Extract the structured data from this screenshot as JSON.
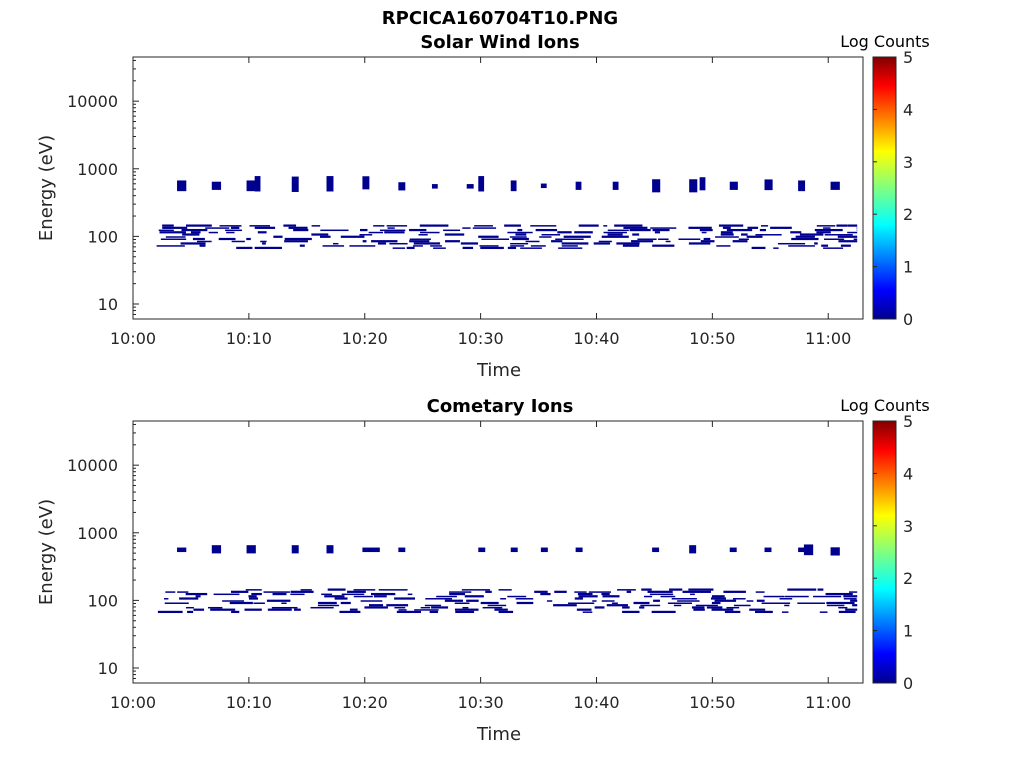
{
  "figure": {
    "title": "RPCICA160704T10.PNG"
  },
  "chart_data": [
    {
      "type": "heatmap",
      "title": "Solar Wind Ions",
      "xlabel": "Time",
      "ylabel": "Energy (eV)",
      "x_ticks": [
        "10:00",
        "10:10",
        "10:20",
        "10:30",
        "10:40",
        "10:50",
        "11:00"
      ],
      "y_ticks": [
        "10",
        "100",
        "1000",
        "10000"
      ],
      "y_scale": "log",
      "xlim_minutes": [
        0,
        63
      ],
      "ylim": [
        6,
        45000
      ],
      "colorbar": {
        "label": "Log Counts",
        "ticks": [
          "0",
          "1",
          "2",
          "3",
          "4",
          "5"
        ],
        "range": [
          0,
          5
        ],
        "colormap": "jet"
      },
      "upper_band": [
        {
          "t": 3.8,
          "e": 560,
          "w": 0.8,
          "h": 1.2
        },
        {
          "t": 6.8,
          "e": 560,
          "w": 0.8,
          "h": 1.15
        },
        {
          "t": 9.8,
          "e": 560,
          "w": 1.0,
          "h": 1.2
        },
        {
          "t": 10.5,
          "e": 600,
          "w": 0.5,
          "h": 1.3
        },
        {
          "t": 13.7,
          "e": 590,
          "w": 0.6,
          "h": 1.3
        },
        {
          "t": 16.7,
          "e": 600,
          "w": 0.6,
          "h": 1.3
        },
        {
          "t": 19.8,
          "e": 620,
          "w": 0.6,
          "h": 1.25
        },
        {
          "t": 22.9,
          "e": 550,
          "w": 0.6,
          "h": 1.15
        },
        {
          "t": 25.8,
          "e": 550,
          "w": 0.5,
          "h": 1.08
        },
        {
          "t": 28.8,
          "e": 550,
          "w": 0.6,
          "h": 1.08
        },
        {
          "t": 29.8,
          "e": 600,
          "w": 0.5,
          "h": 1.3
        },
        {
          "t": 32.6,
          "e": 560,
          "w": 0.5,
          "h": 1.2
        },
        {
          "t": 35.2,
          "e": 560,
          "w": 0.5,
          "h": 1.08
        },
        {
          "t": 38.2,
          "e": 560,
          "w": 0.5,
          "h": 1.15
        },
        {
          "t": 41.4,
          "e": 560,
          "w": 0.5,
          "h": 1.15
        },
        {
          "t": 44.8,
          "e": 560,
          "w": 0.7,
          "h": 1.25
        },
        {
          "t": 48.0,
          "e": 560,
          "w": 0.7,
          "h": 1.25
        },
        {
          "t": 48.9,
          "e": 600,
          "w": 0.5,
          "h": 1.25
        },
        {
          "t": 51.5,
          "e": 560,
          "w": 0.7,
          "h": 1.15
        },
        {
          "t": 54.5,
          "e": 580,
          "w": 0.7,
          "h": 1.2
        },
        {
          "t": 57.4,
          "e": 560,
          "w": 0.6,
          "h": 1.2
        },
        {
          "t": 60.2,
          "e": 560,
          "w": 0.8,
          "h": 1.15
        }
      ],
      "lower_band": {
        "t_start": 2.0,
        "t_end": 62.5,
        "e_min": 65,
        "e_max": 150,
        "color_value": 0.1
      }
    },
    {
      "type": "heatmap",
      "title": "Cometary Ions",
      "xlabel": "Time",
      "ylabel": "Energy (eV)",
      "x_ticks": [
        "10:00",
        "10:10",
        "10:20",
        "10:30",
        "10:40",
        "10:50",
        "11:00"
      ],
      "y_ticks": [
        "10",
        "100",
        "1000",
        "10000"
      ],
      "y_scale": "log",
      "xlim_minutes": [
        0,
        63
      ],
      "ylim": [
        6,
        45000
      ],
      "colorbar": {
        "label": "Log Counts",
        "ticks": [
          "0",
          "1",
          "2",
          "3",
          "4",
          "5"
        ],
        "range": [
          0,
          5
        ],
        "colormap": "jet"
      },
      "upper_band": [
        {
          "t": 3.8,
          "e": 560,
          "w": 0.8,
          "h": 1.08
        },
        {
          "t": 6.8,
          "e": 570,
          "w": 0.8,
          "h": 1.15
        },
        {
          "t": 9.8,
          "e": 570,
          "w": 0.8,
          "h": 1.15
        },
        {
          "t": 13.7,
          "e": 570,
          "w": 0.6,
          "h": 1.15
        },
        {
          "t": 16.7,
          "e": 570,
          "w": 0.6,
          "h": 1.15
        },
        {
          "t": 19.8,
          "e": 560,
          "w": 1.5,
          "h": 1.08
        },
        {
          "t": 22.9,
          "e": 560,
          "w": 0.6,
          "h": 1.08
        },
        {
          "t": 29.8,
          "e": 560,
          "w": 0.6,
          "h": 1.08
        },
        {
          "t": 32.6,
          "e": 560,
          "w": 0.6,
          "h": 1.08
        },
        {
          "t": 35.2,
          "e": 560,
          "w": 0.6,
          "h": 1.08
        },
        {
          "t": 38.2,
          "e": 560,
          "w": 0.6,
          "h": 1.08
        },
        {
          "t": 44.8,
          "e": 560,
          "w": 0.6,
          "h": 1.08
        },
        {
          "t": 48.0,
          "e": 570,
          "w": 0.6,
          "h": 1.15
        },
        {
          "t": 51.5,
          "e": 560,
          "w": 0.6,
          "h": 1.08
        },
        {
          "t": 54.5,
          "e": 560,
          "w": 0.6,
          "h": 1.08
        },
        {
          "t": 57.4,
          "e": 560,
          "w": 0.6,
          "h": 1.08
        },
        {
          "t": 57.9,
          "e": 560,
          "w": 0.8,
          "h": 1.2
        },
        {
          "t": 60.2,
          "e": 530,
          "w": 0.8,
          "h": 1.15
        }
      ],
      "lower_band": {
        "t_start": 2.0,
        "t_end": 62.5,
        "e_min": 65,
        "e_max": 150,
        "color_value": 0.1
      }
    }
  ]
}
